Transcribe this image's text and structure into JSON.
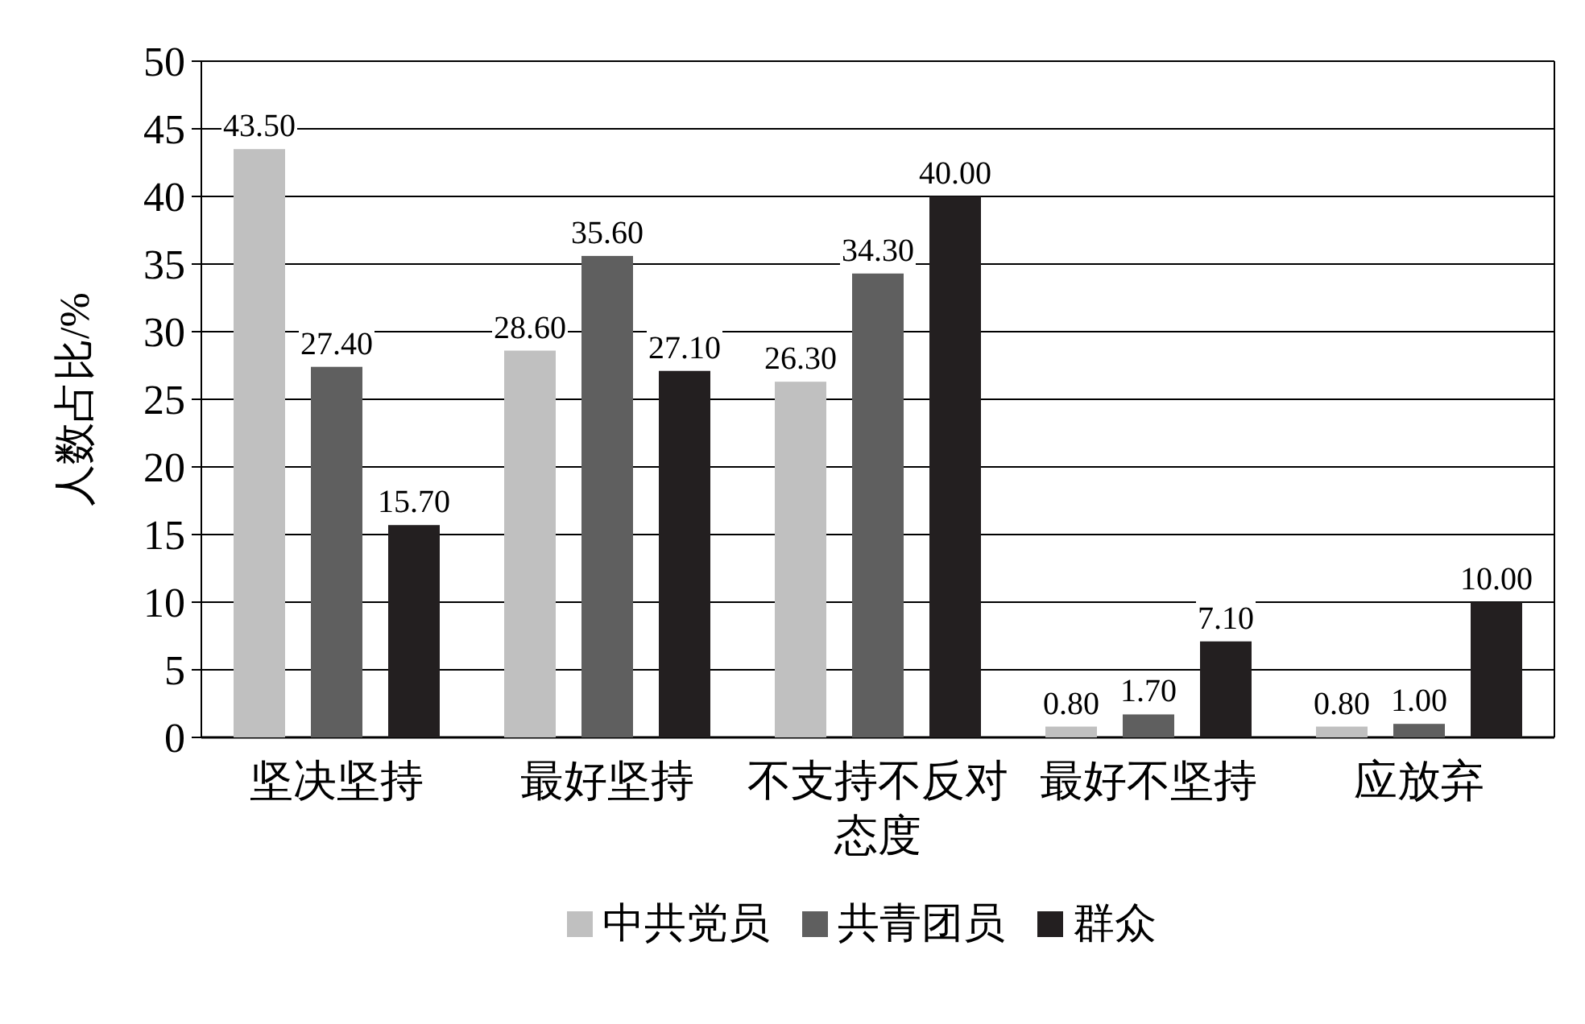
{
  "chart_data": {
    "type": "bar",
    "ylabel": "人数占比/%",
    "categories": [
      "坚决坚持",
      "最好坚持",
      "不支持不反对态度",
      "最好不坚持",
      "应放弃"
    ],
    "series": [
      {
        "name": "中共党员",
        "color": "#c0c0c0",
        "values": [
          43.5,
          28.6,
          26.3,
          0.8,
          0.8
        ],
        "value_labels": [
          "43.50",
          "28.60",
          "26.30",
          "0.80",
          "0.80"
        ]
      },
      {
        "name": "共青团员",
        "color": "#5f5f5f",
        "values": [
          27.4,
          35.6,
          34.3,
          1.7,
          1.0
        ],
        "value_labels": [
          "27.40",
          "35.60",
          "34.30",
          "1.70",
          "1.00"
        ]
      },
      {
        "name": "群众",
        "color": "#231f20",
        "values": [
          15.7,
          27.1,
          40.0,
          7.1,
          10.0
        ],
        "value_labels": [
          "15.70",
          "27.10",
          "40.00",
          "7.10",
          "10.00"
        ]
      }
    ],
    "ylim": [
      0,
      50
    ],
    "yticks": [
      0,
      5,
      10,
      15,
      20,
      25,
      30,
      35,
      40,
      45,
      50
    ],
    "grid": "y",
    "legend": "bottom"
  }
}
